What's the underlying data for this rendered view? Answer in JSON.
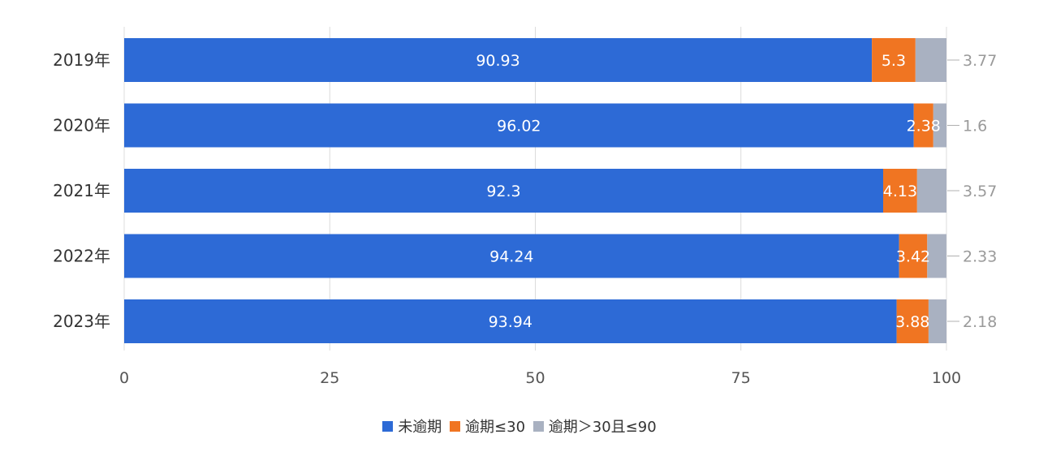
{
  "chart_data": {
    "type": "bar",
    "orientation": "horizontal",
    "stacked": true,
    "categories": [
      "2019年",
      "2020年",
      "2021年",
      "2022年",
      "2023年"
    ],
    "series": [
      {
        "name": "未逾期",
        "color": "#2d6ad6",
        "values": [
          90.93,
          96.02,
          92.3,
          94.24,
          93.94
        ]
      },
      {
        "name": "逾期≤30",
        "color": "#f07522",
        "values": [
          5.3,
          2.38,
          4.13,
          3.42,
          3.88
        ]
      },
      {
        "name": "逾期＞30且≤90",
        "color": "#a9b1c1",
        "values": [
          3.77,
          1.6,
          3.57,
          2.33,
          2.18
        ]
      }
    ],
    "xlim": [
      0,
      100
    ],
    "xticks": [
      0,
      25,
      50,
      75,
      100
    ],
    "grid": true,
    "legend": "bottom",
    "label_colors": [
      "#ffffff",
      "#ffffff",
      "#9a9a9a"
    ]
  }
}
